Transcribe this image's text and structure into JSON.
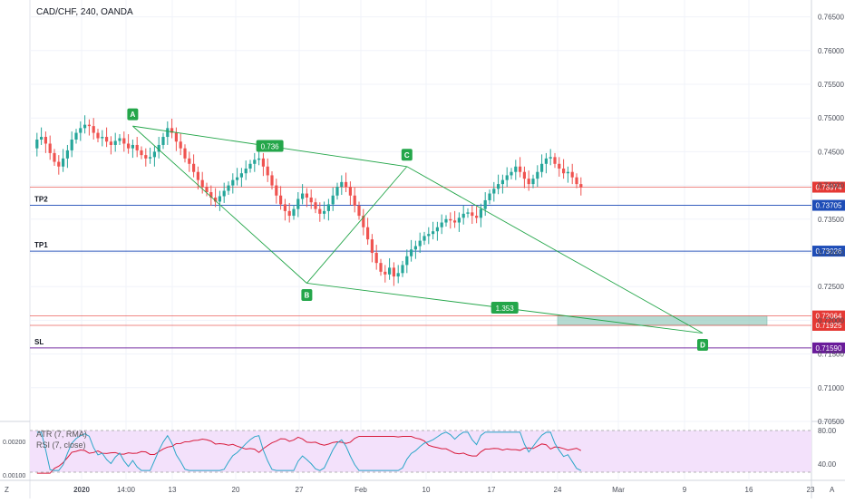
{
  "header": {
    "symbol_title": "CAD/CHF, 240, OANDA"
  },
  "indicators": {
    "atr_title": "ATR (7, RMA)",
    "rsi_title": "RSI (7, close)"
  },
  "footer": {
    "left_button": "Z",
    "right_button": "A"
  },
  "colors": {
    "up": "#26a69a",
    "down": "#ef5350",
    "pattern": "#24a64a",
    "level_blue": "#1e4db7",
    "level_red": "#e53935",
    "level_purple": "#6a1b9a",
    "rsi_bg": "#f3e1fb",
    "atr_line": "#d81b3c",
    "rsi_line": "#2aa6c8"
  },
  "chart_data": [
    {
      "type": "line",
      "subtype": "candlestick",
      "title": "CAD/CHF, 240, OANDA",
      "ylim": [
        0.705,
        0.7675
      ],
      "y_ticks": [
        "0.76500",
        "0.76000",
        "0.75500",
        "0.75000",
        "0.74500",
        "0.74000",
        "0.73500",
        "0.73000",
        "0.72500",
        "0.72000",
        "0.71500",
        "0.71000",
        "0.70500"
      ],
      "x_ticks": [
        "2020",
        "14:00",
        "13",
        "20",
        "27",
        "Feb",
        "10",
        "17",
        "24",
        "Mar",
        "9",
        "16",
        "23"
      ],
      "price_path": [
        0.7455,
        0.7468,
        0.7472,
        0.7462,
        0.7448,
        0.7435,
        0.7428,
        0.744,
        0.7452,
        0.7468,
        0.7478,
        0.7485,
        0.749,
        0.7488,
        0.7478,
        0.747,
        0.7472,
        0.7465,
        0.746,
        0.7466,
        0.747,
        0.7462,
        0.7455,
        0.746,
        0.7452,
        0.7445,
        0.744,
        0.7442,
        0.745,
        0.746,
        0.7472,
        0.7485,
        0.7478,
        0.7465,
        0.7455,
        0.744,
        0.7432,
        0.742,
        0.7408,
        0.7398,
        0.739,
        0.7382,
        0.7376,
        0.7384,
        0.7392,
        0.74,
        0.7408,
        0.7412,
        0.7418,
        0.7425,
        0.7432,
        0.7438,
        0.744,
        0.7428,
        0.7415,
        0.74,
        0.7385,
        0.7372,
        0.7362,
        0.7355,
        0.7365,
        0.738,
        0.7388,
        0.7382,
        0.7375,
        0.7365,
        0.7358,
        0.7362,
        0.7372,
        0.7385,
        0.7398,
        0.7405,
        0.7398,
        0.7385,
        0.737,
        0.7355,
        0.7338,
        0.732,
        0.73,
        0.7285,
        0.7272,
        0.7268,
        0.7278,
        0.7265,
        0.727,
        0.7282,
        0.7295,
        0.7305,
        0.731,
        0.7318,
        0.7325,
        0.7328,
        0.7332,
        0.7338,
        0.7345,
        0.735,
        0.7348,
        0.7345,
        0.7352,
        0.7358,
        0.736,
        0.7355,
        0.7352,
        0.7365,
        0.7378,
        0.7388,
        0.7395,
        0.7402,
        0.7408,
        0.7415,
        0.742,
        0.7428,
        0.742,
        0.741,
        0.7402,
        0.741,
        0.742,
        0.7432,
        0.744,
        0.7442,
        0.7432,
        0.7425,
        0.7418,
        0.742,
        0.7412,
        0.7402,
        0.7397
      ],
      "patterns": [
        {
          "label": "A",
          "date_index": 23,
          "price": 0.7488
        },
        {
          "label": "B",
          "date_index": 63,
          "price": 0.7255
        },
        {
          "label": "C",
          "date_index": 86,
          "price": 0.7428
        },
        {
          "label": "D",
          "date_index": 117,
          "price": 0.7181
        }
      ],
      "ratios": [
        "0.736",
        "1.353"
      ],
      "levels": [
        {
          "name": "TP2",
          "price": 0.73705,
          "label": "0.73705"
        },
        {
          "name": "TP1",
          "price": 0.73026,
          "label": "0.73026"
        },
        {
          "name": "SL",
          "price": 0.7159,
          "label": "0.71590"
        },
        {
          "name": "",
          "price": 0.72064,
          "label": "0.72064"
        },
        {
          "name": "",
          "price": 0.71925,
          "label": "0.71925"
        },
        {
          "name": "",
          "price": 0.73974,
          "label": "0.73974"
        }
      ],
      "target_zone": {
        "from": 0.71925,
        "to": 0.72064
      }
    },
    {
      "type": "line",
      "title": "ATR (7, RMA) / RSI (7, close)",
      "atr_ticks": [
        "0.00200",
        "0.00100"
      ],
      "rsi_ticks": [
        "80.00",
        "40.00"
      ],
      "rsi_bounds": [
        70,
        30
      ]
    }
  ]
}
